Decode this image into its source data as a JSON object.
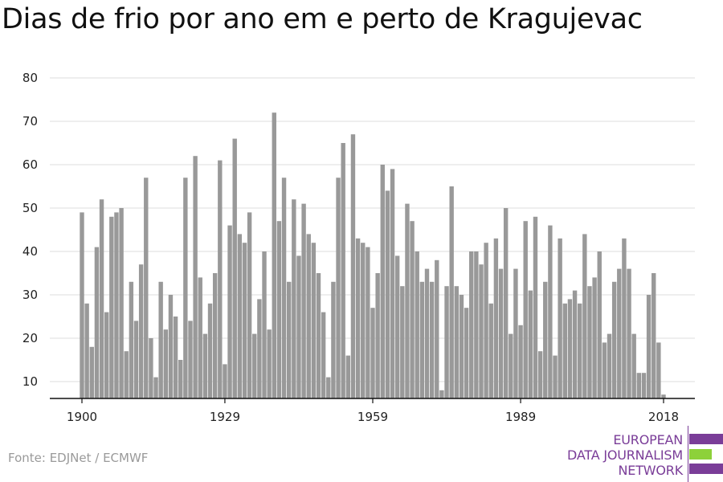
{
  "title": "Dias de frio por ano em e perto de Kragujevac",
  "source": "Fonte: EDJNet / ECMWF",
  "logo": {
    "lines": [
      "EUROPEAN",
      "DATA JOURNALISM",
      "NETWORK"
    ],
    "colors": {
      "purple": "#7a3d98",
      "green": "#8dd13a"
    }
  },
  "chart_data": {
    "type": "bar",
    "title": "Dias de frio por ano em e perto de Kragujevac",
    "xlabel": "",
    "ylabel": "",
    "x_ticks": [
      "1900",
      "1929",
      "1959",
      "1989",
      "2018"
    ],
    "y_ticks": [
      10,
      20,
      30,
      40,
      50,
      60,
      70,
      80
    ],
    "ylim": [
      6,
      80
    ],
    "xlim": [
      1900,
      2018
    ],
    "grid": true,
    "bar_color": "#999999",
    "x": [
      1900,
      1901,
      1902,
      1903,
      1904,
      1905,
      1906,
      1907,
      1908,
      1909,
      1910,
      1911,
      1912,
      1913,
      1914,
      1915,
      1916,
      1917,
      1918,
      1919,
      1920,
      1921,
      1922,
      1923,
      1924,
      1925,
      1926,
      1927,
      1928,
      1929,
      1930,
      1931,
      1932,
      1933,
      1934,
      1935,
      1936,
      1937,
      1938,
      1939,
      1940,
      1941,
      1942,
      1943,
      1944,
      1945,
      1946,
      1947,
      1948,
      1949,
      1950,
      1951,
      1952,
      1953,
      1954,
      1955,
      1956,
      1957,
      1958,
      1959,
      1960,
      1961,
      1962,
      1963,
      1964,
      1965,
      1966,
      1967,
      1968,
      1969,
      1970,
      1971,
      1972,
      1973,
      1974,
      1975,
      1976,
      1977,
      1978,
      1979,
      1980,
      1981,
      1982,
      1983,
      1984,
      1985,
      1986,
      1987,
      1988,
      1989,
      1990,
      1991,
      1992,
      1993,
      1994,
      1995,
      1996,
      1997,
      1998,
      1999,
      2000,
      2001,
      2002,
      2003,
      2004,
      2005,
      2006,
      2007,
      2008,
      2009,
      2010,
      2011,
      2012,
      2013,
      2014,
      2015,
      2016,
      2017,
      2018
    ],
    "values": [
      49,
      28,
      18,
      41,
      52,
      26,
      48,
      49,
      50,
      17,
      33,
      24,
      37,
      57,
      20,
      11,
      33,
      22,
      30,
      25,
      15,
      57,
      24,
      62,
      34,
      21,
      28,
      35,
      61,
      14,
      46,
      66,
      44,
      42,
      49,
      21,
      29,
      40,
      22,
      72,
      47,
      57,
      33,
      52,
      39,
      51,
      44,
      42,
      35,
      26,
      11,
      33,
      57,
      65,
      16,
      67,
      43,
      42,
      41,
      27,
      35,
      60,
      54,
      59,
      39,
      32,
      51,
      47,
      40,
      33,
      36,
      33,
      38,
      8,
      32,
      55,
      32,
      30,
      27,
      40,
      40,
      37,
      42,
      28,
      43,
      36,
      50,
      21,
      36,
      23,
      47,
      31,
      48,
      17,
      33,
      46,
      16,
      43,
      28,
      29,
      31,
      28,
      44,
      32,
      34,
      40,
      19,
      21,
      33,
      36,
      43,
      36,
      21,
      12,
      12,
      30,
      35,
      19,
      7
    ]
  }
}
